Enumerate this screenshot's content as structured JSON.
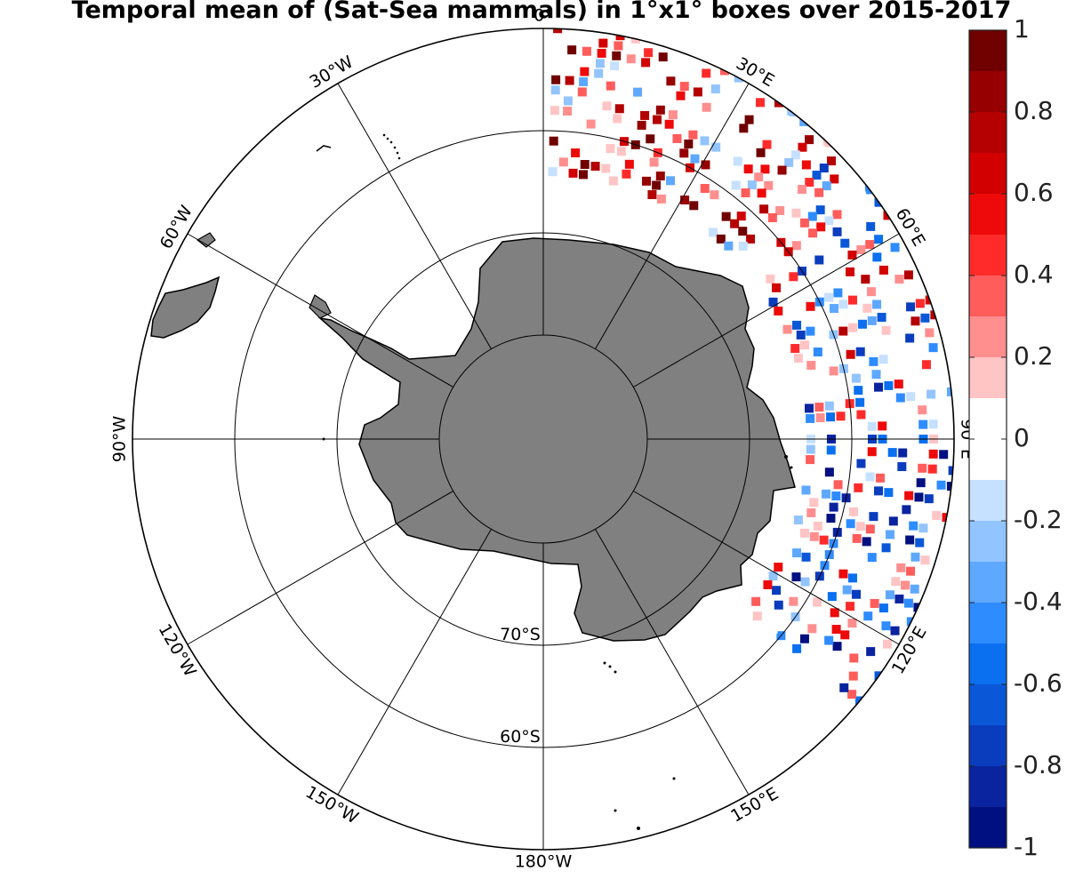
{
  "title": "Temporal mean of (Sat-Sea mammals) in 1°x1° boxes over 2015-2017",
  "map": {
    "projection": "south polar stereographic",
    "latitude_circles": [
      {
        "lat": -70,
        "label": "70°S"
      },
      {
        "lat": -60,
        "label": "60°S"
      }
    ],
    "meridian_labels": [
      {
        "lon": 0,
        "label": "0°"
      },
      {
        "lon": 30,
        "label": "30°E"
      },
      {
        "lon": 60,
        "label": "60°E"
      },
      {
        "lon": 90,
        "label": "90°E"
      },
      {
        "lon": 120,
        "label": "120°E"
      },
      {
        "lon": 150,
        "label": "150°E"
      },
      {
        "lon": 180,
        "label": "180°W"
      },
      {
        "lon": -150,
        "label": "150°W"
      },
      {
        "lon": -120,
        "label": "120°W"
      },
      {
        "lon": -90,
        "label": "90°W"
      },
      {
        "lon": -60,
        "label": "60°W"
      },
      {
        "lon": -30,
        "label": "30°W"
      }
    ],
    "land_color": "#808080",
    "data_sector": {
      "lon_from": 0,
      "lon_to": 130,
      "lat_from": -65,
      "lat_to": -45
    }
  },
  "colorbar": {
    "range": [
      -1,
      1
    ],
    "ticks": [
      "1",
      "0.8",
      "0.6",
      "0.4",
      "0.2",
      "0",
      "-0.2",
      "-0.4",
      "-0.6",
      "-0.8",
      "-1"
    ],
    "colors": [
      "#700000",
      "#960000",
      "#b40000",
      "#d20000",
      "#ee0a0a",
      "#ff2b2b",
      "#ff5c5c",
      "#ff8e8e",
      "#ffc4c4",
      "#ffffff",
      "#ffffff",
      "#c6e0ff",
      "#92c4ff",
      "#5ea8ff",
      "#2e8cff",
      "#0a70f0",
      "#0a58d8",
      "#0a3cbe",
      "#0a24a0",
      "#001080"
    ]
  }
}
